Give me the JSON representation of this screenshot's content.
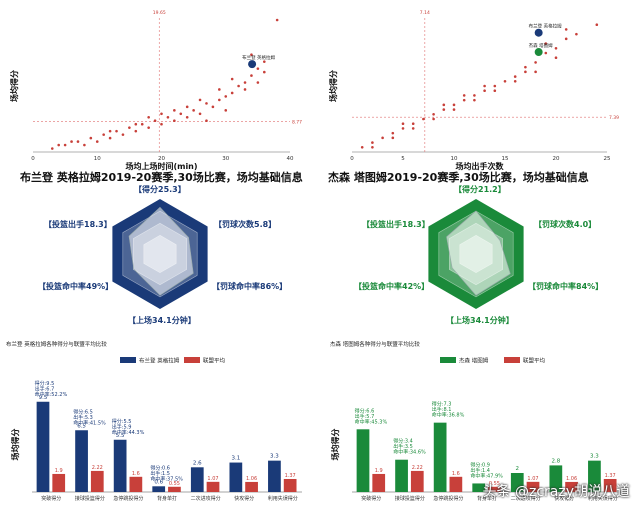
{
  "colors": {
    "brandon": "#1a3a78",
    "jayson": "#1a8a3a",
    "league": "#c8403a",
    "scatter": "#c8403a"
  },
  "chart_data": [
    {
      "type": "scatter",
      "xlabel": "场均上场时间(min)",
      "ylabel": "场均得分",
      "xlim": [
        0,
        40
      ],
      "xticks": [
        0,
        10,
        20,
        30,
        40
      ],
      "ref_x": 19.65,
      "ref_y": 8.77,
      "ref_x_label": "19.65",
      "ref_y_label": "8.77",
      "highlights": [
        {
          "label": "布兰登 英格拉姆",
          "x": 34.1,
          "y": 25.3
        }
      ],
      "points": [
        [
          3,
          1
        ],
        [
          5,
          2
        ],
        [
          6,
          3
        ],
        [
          8,
          2
        ],
        [
          9,
          4
        ],
        [
          10,
          3
        ],
        [
          11,
          5
        ],
        [
          12,
          4
        ],
        [
          13,
          6
        ],
        [
          14,
          5
        ],
        [
          15,
          7
        ],
        [
          16,
          6
        ],
        [
          17,
          8
        ],
        [
          18,
          7
        ],
        [
          19,
          9
        ],
        [
          20,
          8
        ],
        [
          21,
          10
        ],
        [
          22,
          9
        ],
        [
          23,
          11
        ],
        [
          24,
          10
        ],
        [
          25,
          12
        ],
        [
          26,
          11
        ],
        [
          27,
          14
        ],
        [
          28,
          13
        ],
        [
          29,
          15
        ],
        [
          30,
          16
        ],
        [
          31,
          17
        ],
        [
          32,
          19
        ],
        [
          33,
          20
        ],
        [
          34,
          22
        ],
        [
          35,
          24
        ],
        [
          36,
          26
        ],
        [
          38,
          38
        ],
        [
          4,
          2
        ],
        [
          7,
          3
        ],
        [
          12,
          6
        ],
        [
          18,
          10
        ],
        [
          22,
          12
        ],
        [
          26,
          15
        ],
        [
          29,
          18
        ],
        [
          31,
          21
        ],
        [
          33,
          18
        ],
        [
          34,
          28
        ],
        [
          35,
          20
        ],
        [
          36,
          23
        ],
        [
          30,
          12
        ],
        [
          27,
          9
        ],
        [
          24,
          13
        ],
        [
          20,
          11
        ],
        [
          16,
          8
        ]
      ],
      "title": "布兰登 英格拉姆2019-20赛季,30场比赛，场均基础信息"
    },
    {
      "type": "scatter",
      "xlabel": "场均出手次数",
      "ylabel": "场均得分",
      "xlim": [
        0,
        25
      ],
      "xticks": [
        0,
        5,
        10,
        15,
        20,
        25
      ],
      "ref_x": 7.14,
      "ref_y": 7.39,
      "ref_x_label": "7.14",
      "ref_y_label": "7.39",
      "highlights": [
        {
          "label": "布兰登 英格拉姆",
          "x": 18.3,
          "y": 25.3
        },
        {
          "label": "杰森 塔图姆",
          "x": 18.3,
          "y": 21.2
        }
      ],
      "points": [
        [
          1,
          1
        ],
        [
          2,
          2
        ],
        [
          3,
          3
        ],
        [
          4,
          4
        ],
        [
          5,
          5
        ],
        [
          6,
          6
        ],
        [
          7,
          7
        ],
        [
          8,
          8
        ],
        [
          9,
          9
        ],
        [
          10,
          10
        ],
        [
          11,
          11
        ],
        [
          12,
          12
        ],
        [
          13,
          13
        ],
        [
          14,
          14
        ],
        [
          15,
          15
        ],
        [
          16,
          16
        ],
        [
          17,
          18
        ],
        [
          18,
          19
        ],
        [
          19,
          21
        ],
        [
          20,
          22
        ],
        [
          21,
          24
        ],
        [
          22,
          25
        ],
        [
          24,
          27
        ],
        [
          2,
          1
        ],
        [
          4,
          3
        ],
        [
          6,
          5
        ],
        [
          8,
          7
        ],
        [
          10,
          9
        ],
        [
          12,
          11
        ],
        [
          14,
          13
        ],
        [
          16,
          15
        ],
        [
          18,
          17
        ],
        [
          20,
          20
        ],
        [
          5,
          6
        ],
        [
          9,
          10
        ],
        [
          13,
          14
        ],
        [
          17,
          17
        ],
        [
          19,
          23
        ],
        [
          21,
          26
        ],
        [
          11,
          12
        ]
      ],
      "title": "杰森 塔图姆2019-20赛季,30场比赛，场均基础信息"
    },
    {
      "type": "radar",
      "player": "布兰登 英格拉姆",
      "axes": [
        {
          "label": "【得分25.3】",
          "value": 25.3
        },
        {
          "label": "【罚球次数5.8】",
          "value": 5.8
        },
        {
          "label": "【罚球命中率86%】",
          "value": 86
        },
        {
          "label": "【上场34.1分钟】",
          "value": 34.1
        },
        {
          "label": "【投篮命中率49%】",
          "value": 49
        },
        {
          "label": "【投篮出手18.3】",
          "value": 18.3
        }
      ],
      "normalized": [
        0.85,
        0.6,
        0.7,
        0.75,
        0.55,
        0.65
      ]
    },
    {
      "type": "radar",
      "player": "杰森 塔图姆",
      "axes": [
        {
          "label": "【得分21.2】",
          "value": 21.2
        },
        {
          "label": "【罚球次数4.0】",
          "value": 4.0
        },
        {
          "label": "【罚球命中率84%】",
          "value": 84
        },
        {
          "label": "【上场34.1分钟】",
          "value": 34.1
        },
        {
          "label": "【投篮命中率42%】",
          "value": 42
        },
        {
          "label": "【投篮出手18.3】",
          "value": 18.3
        }
      ],
      "normalized": [
        0.78,
        0.5,
        0.72,
        0.75,
        0.5,
        0.62
      ]
    },
    {
      "type": "bar",
      "title": "布兰登 英格拉姆各种得分与联盟平均比较",
      "ylabel": "场均得分",
      "ylim": [
        0,
        10
      ],
      "categories": [
        "突破得分",
        "接球投篮得分",
        "急停跳投得分",
        "背身单打",
        "二次进攻得分",
        "快攻得分",
        "利用失误得分"
      ],
      "series": [
        {
          "name": "布兰登 英格拉姆",
          "values": [
            9.5,
            6.5,
            5.5,
            0.6,
            2.6,
            3.1,
            3.3
          ]
        },
        {
          "name": "联盟平均",
          "values": [
            1.9,
            2.22,
            1.6,
            0.55,
            1.07,
            1.06,
            1.37
          ]
        }
      ],
      "value_labels": [
        "9.5",
        "6.5",
        "5.5",
        "0.6",
        "2.6",
        "3.1",
        "3.3"
      ],
      "league_labels": [
        "1.9",
        "2.22",
        "1.6",
        "0.55",
        "1.07",
        "1.06",
        "1.37"
      ],
      "annotations": [
        [
          "得分:9.5",
          "出手:6.7",
          "命中率:52.2%"
        ],
        [
          "得分:6.5",
          "出手:5.3",
          "命中率:41.5%"
        ],
        [
          "得分:5.5",
          "出手:5.9",
          "命中率:44.3%"
        ],
        [
          "得分:0.6",
          "出手:1.5",
          "命中率:37.5%"
        ]
      ]
    },
    {
      "type": "bar",
      "title": "杰森 塔图姆各种得分与联盟平均比较",
      "ylabel": "场均得分",
      "ylim": [
        0,
        10
      ],
      "categories": [
        "突破得分",
        "接球投篮得分",
        "急停跳投得分",
        "背身单打",
        "二次进攻得分",
        "快攻得分",
        "利用失误得分"
      ],
      "series": [
        {
          "name": "杰森 塔图姆",
          "values": [
            6.6,
            3.4,
            7.3,
            0.9,
            2.0,
            2.8,
            3.3
          ]
        },
        {
          "name": "联盟平均",
          "values": [
            1.9,
            2.22,
            1.6,
            0.55,
            1.07,
            1.06,
            1.37
          ]
        }
      ],
      "value_labels": [
        "",
        "",
        "",
        "",
        "2",
        "2.8",
        "3.3"
      ],
      "league_labels": [
        "1.9",
        "2.22",
        "1.6",
        "0.55",
        "1.07",
        "1.06",
        "1.37"
      ],
      "annotations": [
        [
          "得分:6.6",
          "出手:5.7",
          "命中率:45.3%"
        ],
        [
          "得分:3.4",
          "出手:3.5",
          "命中率:34.6%"
        ],
        [
          "得分:7.3",
          "出手:8.1",
          "命中率:36.8%"
        ],
        [
          "得分:0.9",
          "出手:1.4",
          "命中率:47.9%"
        ]
      ]
    }
  ],
  "watermark": "头条 @zcrazy胡说八道"
}
